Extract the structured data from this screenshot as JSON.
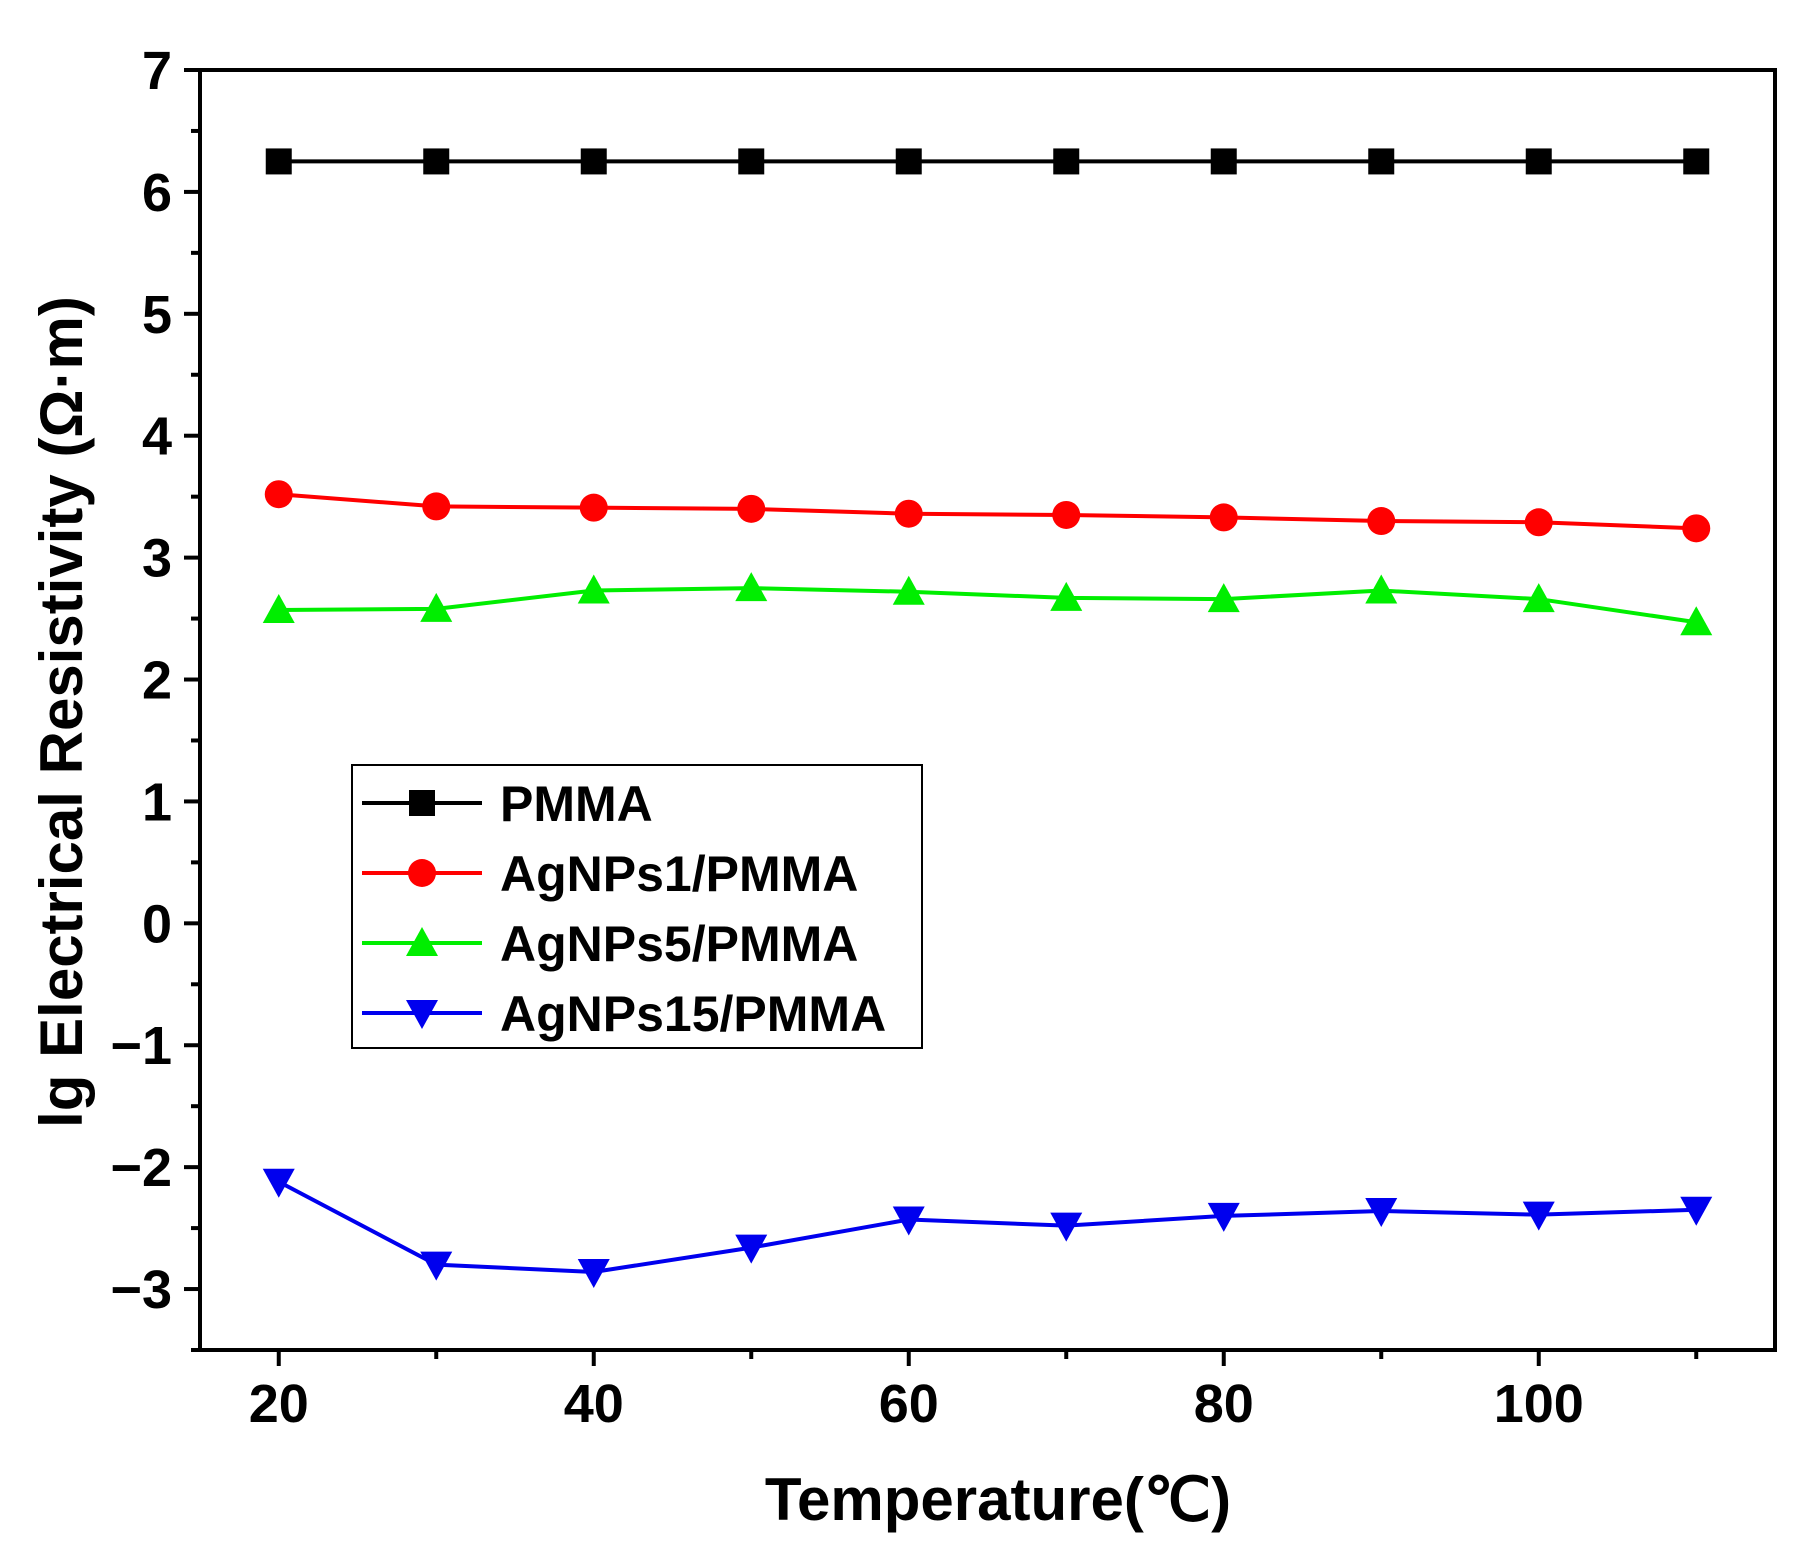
{
  "chart_data": {
    "type": "line",
    "xlabel": "Temperature(℃)",
    "ylabel": "lg Electrical Resistivity (Ω·m)",
    "xlim": [
      15,
      115
    ],
    "ylim": [
      -3.5,
      7
    ],
    "xticks": [
      20,
      40,
      60,
      80,
      100
    ],
    "xtick_labels": [
      "20",
      "40",
      "60",
      "80",
      "100"
    ],
    "yticks": [
      -3,
      -2,
      -1,
      0,
      1,
      2,
      3,
      4,
      5,
      6,
      7
    ],
    "ytick_labels": [
      "−3",
      "−2",
      "−1",
      "0",
      "1",
      "2",
      "3",
      "4",
      "5",
      "6",
      "7"
    ],
    "legend_position": "center-left",
    "x": [
      20,
      30,
      40,
      50,
      60,
      70,
      80,
      90,
      100,
      110
    ],
    "series": [
      {
        "name": "PMMA",
        "color": "#000000",
        "marker": "square",
        "values": [
          6.25,
          6.25,
          6.25,
          6.25,
          6.25,
          6.25,
          6.25,
          6.25,
          6.25,
          6.25
        ]
      },
      {
        "name": "AgNPs1/PMMA",
        "color": "#ff0000",
        "marker": "circle",
        "values": [
          3.52,
          3.42,
          3.41,
          3.4,
          3.36,
          3.35,
          3.33,
          3.3,
          3.29,
          3.24
        ]
      },
      {
        "name": "AgNPs5/PMMA",
        "color": "#00ee00",
        "marker": "triangle-up",
        "values": [
          2.57,
          2.58,
          2.73,
          2.75,
          2.72,
          2.67,
          2.66,
          2.73,
          2.66,
          2.47
        ]
      },
      {
        "name": "AgNPs15/PMMA",
        "color": "#0000ee",
        "marker": "triangle-down",
        "values": [
          -2.12,
          -2.8,
          -2.86,
          -2.66,
          -2.43,
          -2.48,
          -2.4,
          -2.36,
          -2.39,
          -2.35
        ]
      }
    ]
  }
}
